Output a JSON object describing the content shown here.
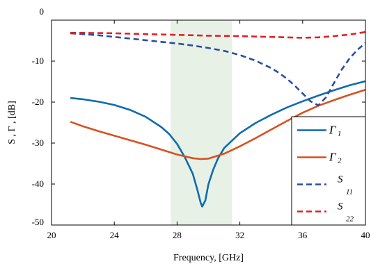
{
  "chart_data": {
    "type": "line",
    "xlabel": "Frequency, [GHz]",
    "ylabel": "S , Γ , [dB]",
    "xlim": [
      20,
      40
    ],
    "ylim": [
      -50,
      0
    ],
    "xticks": [
      20,
      24,
      28,
      32,
      36,
      40
    ],
    "yticks": [
      0,
      -10,
      -20,
      -30,
      -40,
      -50
    ],
    "grid": false,
    "legend_position": "bottom-right",
    "highlight_band": {
      "x": [
        27.6,
        31.5
      ],
      "color": "#e8f1e6"
    },
    "series": [
      {
        "name": "Γ1",
        "label": "Γ",
        "sub": "1",
        "color": "#0e6bb0",
        "dash": "solid",
        "x": [
          21.2,
          22,
          23,
          24,
          25,
          26,
          27,
          27.5,
          28,
          28.5,
          29,
          29.3,
          29.5,
          29.6,
          29.8,
          30,
          30.3,
          30.6,
          31,
          32,
          33,
          34,
          35,
          36,
          37,
          38,
          39,
          40
        ],
        "y": [
          -19,
          -19.3,
          -19.9,
          -20.7,
          -21.9,
          -23.6,
          -26.1,
          -27.8,
          -30.2,
          -33.5,
          -37.5,
          -41.5,
          -44.5,
          -45.5,
          -44,
          -40,
          -36.5,
          -33.8,
          -31.2,
          -27.6,
          -25.1,
          -23.1,
          -21.3,
          -19.8,
          -18.4,
          -17.1,
          -15.9,
          -14.9
        ]
      },
      {
        "name": "Γ2",
        "label": "Γ",
        "sub": "2",
        "color": "#d95020",
        "dash": "solid",
        "x": [
          21.2,
          22,
          23,
          24,
          25,
          26,
          27,
          28,
          29,
          29.5,
          30,
          31,
          32,
          33,
          34,
          35,
          36,
          37,
          38,
          39,
          40
        ],
        "y": [
          -24.8,
          -25.9,
          -27.1,
          -28.2,
          -29.3,
          -30.4,
          -31.6,
          -32.8,
          -33.7,
          -33.9,
          -33.8,
          -32.6,
          -30.8,
          -28.8,
          -26.7,
          -24.6,
          -22.6,
          -20.9,
          -19.5,
          -18.2,
          -17
        ]
      },
      {
        "name": "S11",
        "label": "S",
        "sub": "11",
        "color": "#2a4da0",
        "dash": "dashed",
        "x": [
          21.2,
          22,
          23,
          24,
          25,
          26,
          27,
          28,
          29,
          30,
          31,
          32,
          33,
          34,
          34.5,
          35,
          35.5,
          36,
          36.5,
          37,
          37.5,
          38,
          38.5,
          39,
          39.5,
          40
        ],
        "y": [
          -3.2,
          -3.4,
          -3.7,
          -4.1,
          -4.5,
          -4.9,
          -5.3,
          -5.7,
          -6.2,
          -6.8,
          -7.5,
          -8.5,
          -9.9,
          -11.7,
          -12.9,
          -14.3,
          -16,
          -17.9,
          -19.8,
          -20.8,
          -18.8,
          -15.3,
          -12,
          -9.3,
          -7.2,
          -5.6
        ]
      },
      {
        "name": "S22",
        "label": "S",
        "sub": "22",
        "color": "#e21f26",
        "dash": "dashed",
        "x": [
          21.2,
          22,
          24,
          26,
          28,
          30,
          32,
          34,
          35,
          36,
          37,
          38,
          39,
          40
        ],
        "y": [
          -3.1,
          -3.1,
          -3.2,
          -3.4,
          -3.6,
          -3.8,
          -3.9,
          -4.1,
          -4.2,
          -4.3,
          -4.2,
          -3.9,
          -3.5,
          -2.9
        ]
      }
    ]
  }
}
